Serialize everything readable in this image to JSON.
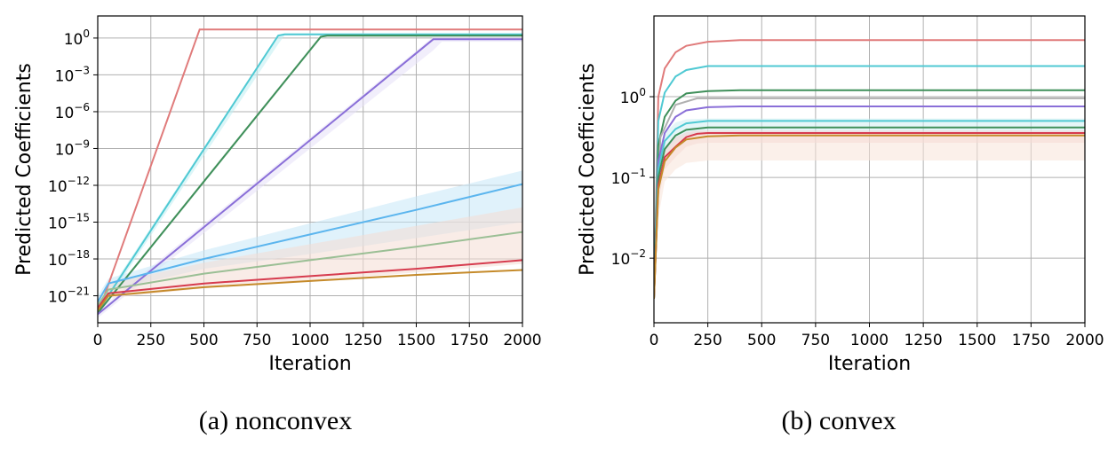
{
  "chart_data": [
    {
      "type": "line",
      "caption": "(a) nonconvex",
      "xlabel": "Iteration",
      "ylabel": "Predicted Coefficients",
      "xlim": [
        0,
        2000
      ],
      "ylim_log10": [
        -23.2,
        1.8
      ],
      "yscale": "log",
      "grid": true,
      "xticks": [
        0,
        250,
        500,
        750,
        1000,
        1250,
        1500,
        1750,
        2000
      ],
      "xtick_labels": [
        "0",
        "250",
        "500",
        "750",
        "1000",
        "1250",
        "1500",
        "1750",
        "2000"
      ],
      "yticks_log10": [
        0,
        -3,
        -6,
        -9,
        -12,
        -15,
        -18,
        -21
      ],
      "ytick_labels": [
        {
          "base": "10",
          "exp": "0"
        },
        {
          "base": "10",
          "exp": "−3"
        },
        {
          "base": "10",
          "exp": "−6"
        },
        {
          "base": "10",
          "exp": "−9"
        },
        {
          "base": "10",
          "exp": "−12"
        },
        {
          "base": "10",
          "exp": "−15"
        },
        {
          "base": "10",
          "exp": "−18"
        },
        {
          "base": "10",
          "exp": "−21"
        }
      ],
      "series": [
        {
          "color": "#e07b7b",
          "x": [
            0,
            480,
            500,
            2000
          ],
          "log10_y": [
            -22.5,
            0.7,
            0.7,
            0.7
          ]
        },
        {
          "color": "#4fc9d3",
          "band": "#bfeef2",
          "x": [
            0,
            850,
            880,
            2000
          ],
          "log10_y": [
            -22.3,
            0.2,
            0.3,
            0.3
          ],
          "band_lo": [
            -22.6,
            -0.5,
            0.2,
            0.2
          ],
          "band_hi": [
            -22.0,
            0.3,
            0.4,
            0.4
          ]
        },
        {
          "color": "#3f8f5a",
          "band": "#cfe8d6",
          "x": [
            0,
            1050,
            1080,
            2000
          ],
          "log10_y": [
            -22.4,
            0.1,
            0.2,
            0.2
          ]
        },
        {
          "color": "#8a6fd8",
          "band": "#e6e0f8",
          "x": [
            0,
            1580,
            1620,
            2000
          ],
          "log10_y": [
            -22.5,
            -0.1,
            -0.1,
            -0.1
          ],
          "band_lo": [
            -22.8,
            -1.0,
            -0.3,
            -0.3
          ],
          "band_hi": [
            -22.2,
            0.1,
            0.1,
            0.1
          ]
        },
        {
          "color": "#5bb5ee",
          "band": "#c7e8f7",
          "x": [
            0,
            50,
            500,
            1000,
            1500,
            2000
          ],
          "log10_y": [
            -21.5,
            -20.0,
            -18.0,
            -16.0,
            -14.0,
            -11.9
          ],
          "band_lo": [
            -22.0,
            -20.6,
            -18.8,
            -17.6,
            -16.3,
            -15.0
          ],
          "band_hi": [
            -21.0,
            -19.6,
            -17.3,
            -15.1,
            -12.9,
            -10.8
          ]
        },
        {
          "color": "#9bbf95",
          "band": "#f4ddd4",
          "x": [
            0,
            50,
            500,
            1000,
            1500,
            2000
          ],
          "log10_y": [
            -21.8,
            -20.5,
            -19.2,
            -18.1,
            -17.0,
            -15.8
          ],
          "band_lo": [
            -22.3,
            -21.2,
            -20.4,
            -19.8,
            -19.1,
            -18.4
          ],
          "band_hi": [
            -21.3,
            -20.0,
            -18.3,
            -16.8,
            -15.3,
            -13.8
          ]
        },
        {
          "color": "#d63b4e",
          "x": [
            0,
            50,
            500,
            1000,
            1500,
            2000
          ],
          "log10_y": [
            -22.0,
            -20.8,
            -20.0,
            -19.4,
            -18.8,
            -18.1
          ]
        },
        {
          "color": "#c58a2a",
          "x": [
            0,
            50,
            500,
            1000,
            1500,
            2000
          ],
          "log10_y": [
            -22.2,
            -21.0,
            -20.3,
            -19.8,
            -19.3,
            -18.9
          ],
          "band_lo": [
            -22.6,
            -21.5,
            -21.0,
            -20.7,
            -20.4,
            -20.1
          ],
          "band_hi": [
            -21.8,
            -20.6,
            -19.6,
            -19.0,
            -18.3,
            -17.6
          ]
        }
      ]
    },
    {
      "type": "line",
      "caption": "(b) convex",
      "xlabel": "Iteration",
      "ylabel": "Predicted Coefficients",
      "xlim": [
        0,
        2000
      ],
      "ylim_log10": [
        -2.8,
        1.0
      ],
      "yscale": "log",
      "grid": true,
      "xticks": [
        0,
        250,
        500,
        750,
        1000,
        1250,
        1500,
        1750,
        2000
      ],
      "xtick_labels": [
        "0",
        "250",
        "500",
        "750",
        "1000",
        "1250",
        "1500",
        "1750",
        "2000"
      ],
      "yticks_log10": [
        0,
        -1,
        -2
      ],
      "ytick_labels": [
        {
          "base": "10",
          "exp": "0"
        },
        {
          "base": "10",
          "exp": "−1"
        },
        {
          "base": "10",
          "exp": "−2"
        }
      ],
      "series": [
        {
          "color": "#e07b7b",
          "x": [
            0,
            20,
            50,
            100,
            150,
            250,
            400,
            2000
          ],
          "log10_y": [
            -2.5,
            0.0,
            0.35,
            0.55,
            0.63,
            0.68,
            0.7,
            0.7
          ]
        },
        {
          "color": "#4fc9d3",
          "x": [
            0,
            20,
            50,
            100,
            150,
            250,
            400,
            2000
          ],
          "log10_y": [
            -2.5,
            -0.3,
            0.05,
            0.25,
            0.33,
            0.38,
            0.38,
            0.38
          ]
        },
        {
          "color": "#3f8f5a",
          "x": [
            0,
            20,
            50,
            100,
            150,
            250,
            400,
            2000
          ],
          "log10_y": [
            -2.5,
            -0.6,
            -0.25,
            -0.05,
            0.04,
            0.07,
            0.08,
            0.08
          ]
        },
        {
          "color": "#b0b0b0",
          "x": [
            0,
            30,
            100,
            200,
            2000
          ],
          "log10_y": [
            -2.5,
            -0.5,
            -0.1,
            -0.02,
            -0.02
          ]
        },
        {
          "color": "#8a6fd8",
          "x": [
            0,
            20,
            50,
            100,
            150,
            250,
            400,
            2000
          ],
          "log10_y": [
            -2.5,
            -0.8,
            -0.45,
            -0.25,
            -0.17,
            -0.13,
            -0.12,
            -0.12
          ]
        },
        {
          "color": "#4fc9d3",
          "band": "#cfeef2",
          "x": [
            0,
            20,
            50,
            100,
            150,
            250,
            400,
            2000
          ],
          "log10_y": [
            -2.5,
            -0.9,
            -0.55,
            -0.4,
            -0.33,
            -0.3,
            -0.3,
            -0.3
          ],
          "band_lo": [
            -2.6,
            -1.1,
            -0.75,
            -0.58,
            -0.5,
            -0.46,
            -0.46,
            -0.46
          ],
          "band_hi": [
            -2.4,
            -0.75,
            -0.45,
            -0.32,
            -0.28,
            -0.27,
            -0.27,
            -0.27
          ]
        },
        {
          "color": "#3f8f5a",
          "x": [
            0,
            20,
            50,
            100,
            150,
            250,
            400,
            2000
          ],
          "log10_y": [
            -2.5,
            -1.0,
            -0.65,
            -0.48,
            -0.41,
            -0.38,
            -0.38,
            -0.38
          ]
        },
        {
          "color": "#d63b4e",
          "band": "#f4cfcf",
          "x": [
            0,
            20,
            50,
            100,
            150,
            200,
            250,
            400,
            2000
          ],
          "log10_y": [
            -2.5,
            -1.1,
            -0.75,
            -0.62,
            -0.5,
            -0.46,
            -0.45,
            -0.45,
            -0.45
          ],
          "band_lo": [
            -2.6,
            -1.3,
            -0.9,
            -0.75,
            -0.62,
            -0.58,
            -0.57,
            -0.57,
            -0.57
          ],
          "band_hi": [
            -2.4,
            -0.95,
            -0.62,
            -0.5,
            -0.44,
            -0.42,
            -0.42,
            -0.42,
            -0.42
          ]
        },
        {
          "color": "#c58a2a",
          "band": "#f8e3d8",
          "x": [
            0,
            20,
            50,
            100,
            150,
            250,
            400,
            2000
          ],
          "log10_y": [
            -2.5,
            -1.15,
            -0.8,
            -0.63,
            -0.53,
            -0.49,
            -0.48,
            -0.48
          ],
          "band_lo": [
            -2.6,
            -1.5,
            -1.05,
            -0.9,
            -0.82,
            -0.79,
            -0.79,
            -0.79
          ],
          "band_hi": [
            -2.4,
            -1.0,
            -0.7,
            -0.55,
            -0.48,
            -0.45,
            -0.45,
            -0.45
          ]
        }
      ]
    }
  ]
}
